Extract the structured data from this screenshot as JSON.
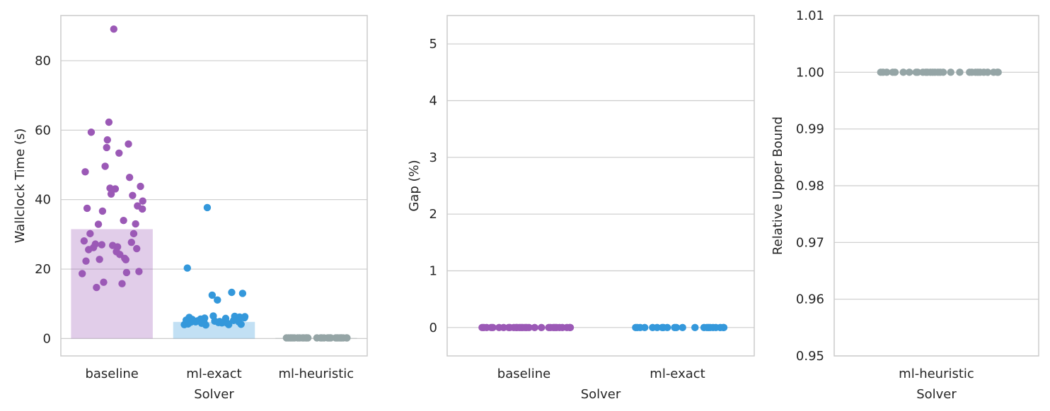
{
  "colors": {
    "baseline": "#9b59b6",
    "ml_exact": "#3498db",
    "ml_heuristic": "#95a5a6",
    "grid": "#cccccc",
    "spine": "#cccccc"
  },
  "chart_data": [
    {
      "type": "bar",
      "overlay": "strip",
      "xlabel": "Solver",
      "ylabel": "Wallclock Time (s)",
      "ylim": [
        -5,
        93
      ],
      "yticks": [
        0,
        20,
        40,
        60,
        80
      ],
      "ytick_labels": [
        "0",
        "20",
        "40",
        "60",
        "80"
      ],
      "grid": true,
      "categories": [
        "baseline",
        "ml-exact",
        "ml-heuristic"
      ],
      "values": [
        31.5,
        4.8,
        0.2
      ],
      "points": [
        [
          89.1,
          62.3,
          59.4,
          57.2,
          56.0,
          55.0,
          53.4,
          49.6,
          48.0,
          46.4,
          43.8,
          43.3,
          43.1,
          41.6,
          41.2,
          39.6,
          38.2,
          37.5,
          37.3,
          36.7,
          34.0,
          33.0,
          32.9,
          30.2,
          30.2,
          28.1,
          27.7,
          27.2,
          27.0,
          26.8,
          26.4,
          26.2,
          25.9,
          25.6,
          25.0,
          24.2,
          23.1,
          22.8,
          22.7,
          22.3,
          19.3,
          19.0,
          18.7,
          16.2,
          15.8,
          14.7
        ],
        [
          37.7,
          20.3,
          13.3,
          13.0,
          12.5,
          11.1,
          6.5,
          6.4,
          6.3,
          6.2,
          6.1,
          6.0,
          5.9,
          5.8,
          5.7,
          5.6,
          5.5,
          5.4,
          5.3,
          5.2,
          5.1,
          5.0,
          5.0,
          4.9,
          4.8,
          4.8,
          4.7,
          4.6,
          4.5,
          4.5,
          4.4,
          4.3,
          4.2,
          4.1,
          4.0,
          4.0,
          3.9
        ],
        [
          0.2,
          0.2,
          0.2,
          0.2,
          0.2,
          0.2,
          0.2,
          0.2,
          0.2,
          0.2,
          0.2,
          0.2,
          0.2,
          0.2,
          0.2,
          0.2,
          0.2,
          0.2,
          0.2,
          0.2,
          0.2,
          0.2,
          0.2,
          0.2,
          0.2,
          0.2,
          0.2,
          0.2,
          0.2,
          0.2
        ]
      ],
      "series_colors": [
        "#9b59b6",
        "#3498db",
        "#95a5a6"
      ]
    },
    {
      "type": "scatter",
      "overlay": "strip",
      "xlabel": "Solver",
      "ylabel": "Gap (%)",
      "ylim": [
        -0.5,
        5.5
      ],
      "yticks": [
        0,
        1,
        2,
        3,
        4,
        5
      ],
      "ytick_labels": [
        "0",
        "1",
        "2",
        "3",
        "4",
        "5"
      ],
      "grid": true,
      "categories": [
        "baseline",
        "ml-exact"
      ],
      "points": [
        [
          0,
          0,
          0,
          0,
          0,
          0,
          0,
          0,
          0,
          0,
          0,
          0,
          0,
          0,
          0,
          0,
          0,
          0,
          0,
          0,
          0,
          0,
          0,
          0,
          0,
          0,
          0,
          0,
          0,
          0
        ],
        [
          0,
          0,
          0,
          0,
          0,
          0,
          0,
          0,
          0,
          0,
          0,
          0,
          0,
          0,
          0,
          0,
          0,
          0,
          0,
          0,
          0,
          0
        ]
      ],
      "series_colors": [
        "#9b59b6",
        "#3498db"
      ]
    },
    {
      "type": "scatter",
      "overlay": "strip",
      "xlabel": "Solver",
      "ylabel": "Relative Upper Bound",
      "ylim": [
        0.95,
        1.01
      ],
      "yticks": [
        0.95,
        0.96,
        0.97,
        0.98,
        0.99,
        1.0,
        1.01
      ],
      "ytick_labels": [
        "0.95",
        "0.96",
        "0.97",
        "0.98",
        "0.99",
        "1.00",
        "1.01"
      ],
      "grid": true,
      "categories": [
        "ml-heuristic"
      ],
      "points": [
        [
          1.0,
          1.0,
          1.0,
          1.0,
          1.0,
          1.0,
          1.0,
          1.0,
          1.0,
          1.0,
          1.0,
          1.0,
          1.0,
          1.0,
          1.0,
          1.0,
          1.0,
          1.0,
          1.0,
          1.0,
          1.0,
          1.0,
          1.0,
          1.0,
          1.0,
          1.0,
          1.0,
          1.0,
          1.0,
          1.0
        ]
      ],
      "series_colors": [
        "#95a5a6"
      ]
    }
  ]
}
